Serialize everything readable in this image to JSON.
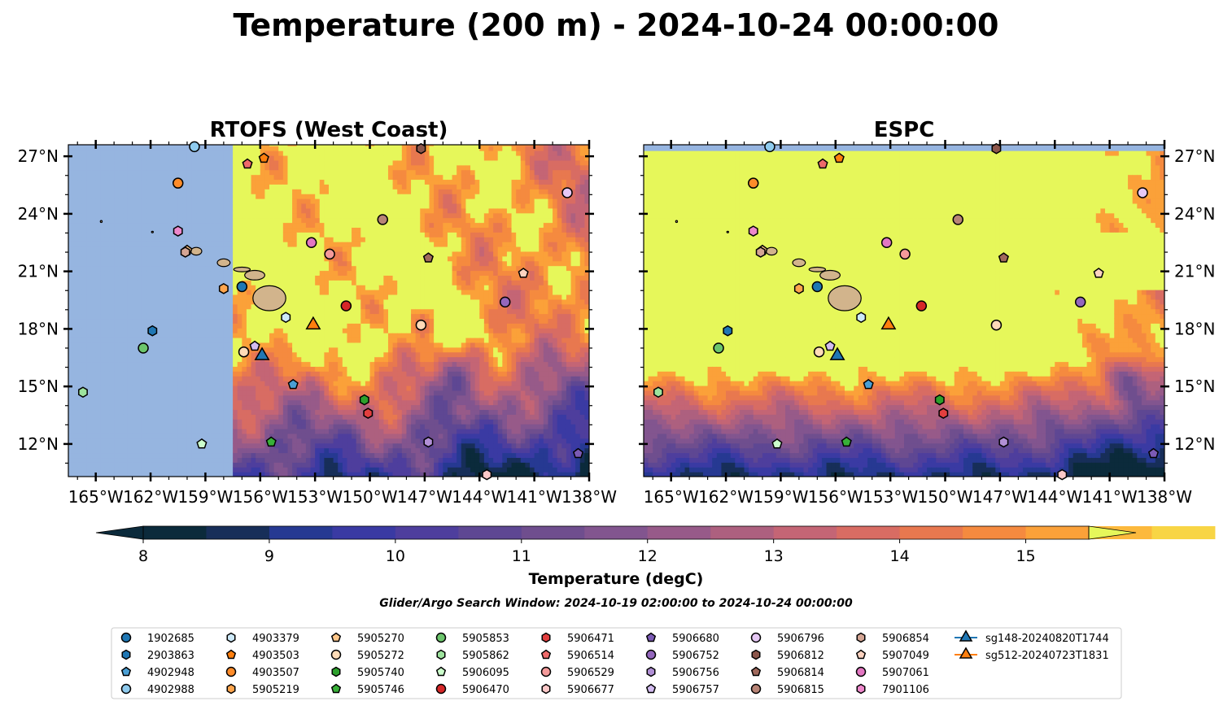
{
  "figure": {
    "title": "Temperature (200 m) - 2024-10-24 00:00:00",
    "search_window": "Glider/Argo Search Window: 2024-10-19 02:00:00 to 2024-10-24 00:00:00"
  },
  "chart_data": [
    {
      "type": "heatmap",
      "title": "RTOFS (West Coast)",
      "model": "rtofs",
      "lon_ticks": [
        "165°W",
        "162°W",
        "159°W",
        "156°W",
        "153°W",
        "150°W",
        "147°W",
        "144°W",
        "141°W",
        "138°W"
      ],
      "lat_ticks": [
        "12°N",
        "15°N",
        "18°N",
        "21°N",
        "24°N",
        "27°N"
      ],
      "lon_range": [
        -166.5,
        -138
      ],
      "lat_range": [
        10.3,
        27.6
      ],
      "coverage_west_edge_lon": -157.5,
      "lat_label_side": "left"
    },
    {
      "type": "heatmap",
      "title": "ESPC",
      "model": "espc",
      "lon_ticks": [
        "165°W",
        "162°W",
        "159°W",
        "156°W",
        "153°W",
        "150°W",
        "147°W",
        "144°W",
        "141°W",
        "138°W"
      ],
      "lat_ticks": [
        "12°N",
        "15°N",
        "18°N",
        "21°N",
        "24°N",
        "27°N"
      ],
      "lon_range": [
        -166.5,
        -138
      ],
      "lat_range": [
        10.3,
        27.6
      ],
      "coverage_north_edge_lat": 27.1,
      "lat_label_side": "right"
    }
  ],
  "colorbar": {
    "label": "Temperature (degC)",
    "min": 7.6,
    "max": 15.9,
    "tick_values": [
      8,
      9,
      10,
      11,
      12,
      13,
      14,
      15
    ],
    "tick_labels": [
      "8",
      "9",
      "10",
      "11",
      "12",
      "13",
      "14",
      "15"
    ],
    "colors": [
      "#0b2a3b",
      "#172e59",
      "#263992",
      "#3a3aa3",
      "#4e3e9d",
      "#5e4793",
      "#6f4e8e",
      "#82558f",
      "#975a89",
      "#ad607f",
      "#c46575",
      "#d86c63",
      "#e8784f",
      "#f58a3f",
      "#fba139",
      "#fcb93d",
      "#f8d545"
    ],
    "over_color": "#e6f75a",
    "under_color": "#0b2a3b"
  },
  "land_color": "#d2b48c",
  "nodata_color": "#96b5e0",
  "floats": [
    {
      "id": "1902685",
      "marker": "circle",
      "color": "#1f77b4",
      "lon": -157.0,
      "lat": 20.2
    },
    {
      "id": "2903863",
      "marker": "hexagon",
      "color": "#1f77b4",
      "lon": -161.9,
      "lat": 17.9
    },
    {
      "id": "4902948",
      "marker": "pentagon",
      "color": "#4a9fd4",
      "lon": -154.2,
      "lat": 15.1
    },
    {
      "id": "4902988",
      "marker": "circle",
      "color": "#8fcbee",
      "lon": -159.6,
      "lat": 27.5
    },
    {
      "id": "4903379",
      "marker": "hexagon",
      "color": "#cde9f9",
      "lon": -154.6,
      "lat": 18.6
    },
    {
      "id": "4903503",
      "marker": "pentagon",
      "color": "#ff7f0e",
      "lon": -155.8,
      "lat": 26.9
    },
    {
      "id": "4903507",
      "marker": "circle",
      "color": "#ff8c2a",
      "lon": -160.5,
      "lat": 25.6
    },
    {
      "id": "5905219",
      "marker": "hexagon",
      "color": "#ffa54d",
      "lon": -158.0,
      "lat": 20.1
    },
    {
      "id": "5905270",
      "marker": "pentagon",
      "color": "#ffc78a",
      "lon": -160.0,
      "lat": 22.1
    },
    {
      "id": "5905272",
      "marker": "circle",
      "color": "#ffdcb8",
      "lon": -156.9,
      "lat": 16.8
    },
    {
      "id": "5905740",
      "marker": "hexagon",
      "color": "#2ca02c",
      "lon": -150.3,
      "lat": 14.3
    },
    {
      "id": "5905746",
      "marker": "pentagon",
      "color": "#38b038",
      "lon": -155.4,
      "lat": 12.1
    },
    {
      "id": "5905853",
      "marker": "circle",
      "color": "#6cc56c",
      "lon": -162.4,
      "lat": 17.0
    },
    {
      "id": "5905862",
      "marker": "hexagon",
      "color": "#9de39d",
      "lon": -165.7,
      "lat": 14.7
    },
    {
      "id": "5906095",
      "marker": "pentagon",
      "color": "#ccffcc",
      "lon": -159.2,
      "lat": 12.0
    },
    {
      "id": "5906470",
      "marker": "circle",
      "color": "#d62728",
      "lon": -151.3,
      "lat": 19.2
    },
    {
      "id": "5906471",
      "marker": "hexagon",
      "color": "#e23f3f",
      "lon": -150.1,
      "lat": 13.6
    },
    {
      "id": "5906514",
      "marker": "pentagon",
      "color": "#ee6a6a",
      "lon": -156.7,
      "lat": 26.6
    },
    {
      "id": "5906529",
      "marker": "circle",
      "color": "#f49a9a",
      "lon": -152.2,
      "lat": 21.9
    },
    {
      "id": "5906677",
      "marker": "hexagon",
      "color": "#fcc8c8",
      "lon": -143.6,
      "lat": 10.4
    },
    {
      "id": "5906680",
      "marker": "pentagon",
      "color": "#7b5ab5",
      "lon": -138.6,
      "lat": 11.5
    },
    {
      "id": "5906752",
      "marker": "circle",
      "color": "#9467bd",
      "lon": -142.6,
      "lat": 19.4
    },
    {
      "id": "5906756",
      "marker": "hexagon",
      "color": "#b190d6",
      "lon": -146.8,
      "lat": 12.1
    },
    {
      "id": "5906757",
      "marker": "pentagon",
      "color": "#d3bcf0",
      "lon": -156.3,
      "lat": 17.1
    },
    {
      "id": "5906796",
      "marker": "circle",
      "color": "#e6c8f5",
      "lon": -139.2,
      "lat": 25.1
    },
    {
      "id": "5906812",
      "marker": "hexagon",
      "color": "#8c564b",
      "lon": -147.2,
      "lat": 27.4
    },
    {
      "id": "5906814",
      "marker": "pentagon",
      "color": "#a0695c",
      "lon": -146.8,
      "lat": 21.7
    },
    {
      "id": "5906815",
      "marker": "circle",
      "color": "#b88476",
      "lon": -149.3,
      "lat": 23.7
    },
    {
      "id": "5906854",
      "marker": "hexagon",
      "color": "#d4a594",
      "lon": -160.1,
      "lat": 22.0
    },
    {
      "id": "5907049",
      "marker": "pentagon",
      "color": "#fcd3c0",
      "lon": -141.6,
      "lat": 20.9
    },
    {
      "id": "5907061",
      "marker": "circle",
      "color": "#e377c2",
      "lon": -153.2,
      "lat": 22.5
    },
    {
      "id": "7901106",
      "marker": "hexagon",
      "color": "#ee88cc",
      "lon": -160.5,
      "lat": 23.1
    }
  ],
  "gliders": [
    {
      "id": "sg148-20240820T1744",
      "marker": "triangle",
      "color": "#1f77b4",
      "lon": -155.9,
      "lat": 16.6
    },
    {
      "id": "sg512-20240723T1831",
      "marker": "triangle",
      "color": "#ff7f0e",
      "lon": -153.1,
      "lat": 18.2
    }
  ],
  "extra_points": [
    {
      "id": "",
      "marker": "circle",
      "color": "#ffd9b8",
      "lon": -147.2,
      "lat": 18.2
    }
  ]
}
